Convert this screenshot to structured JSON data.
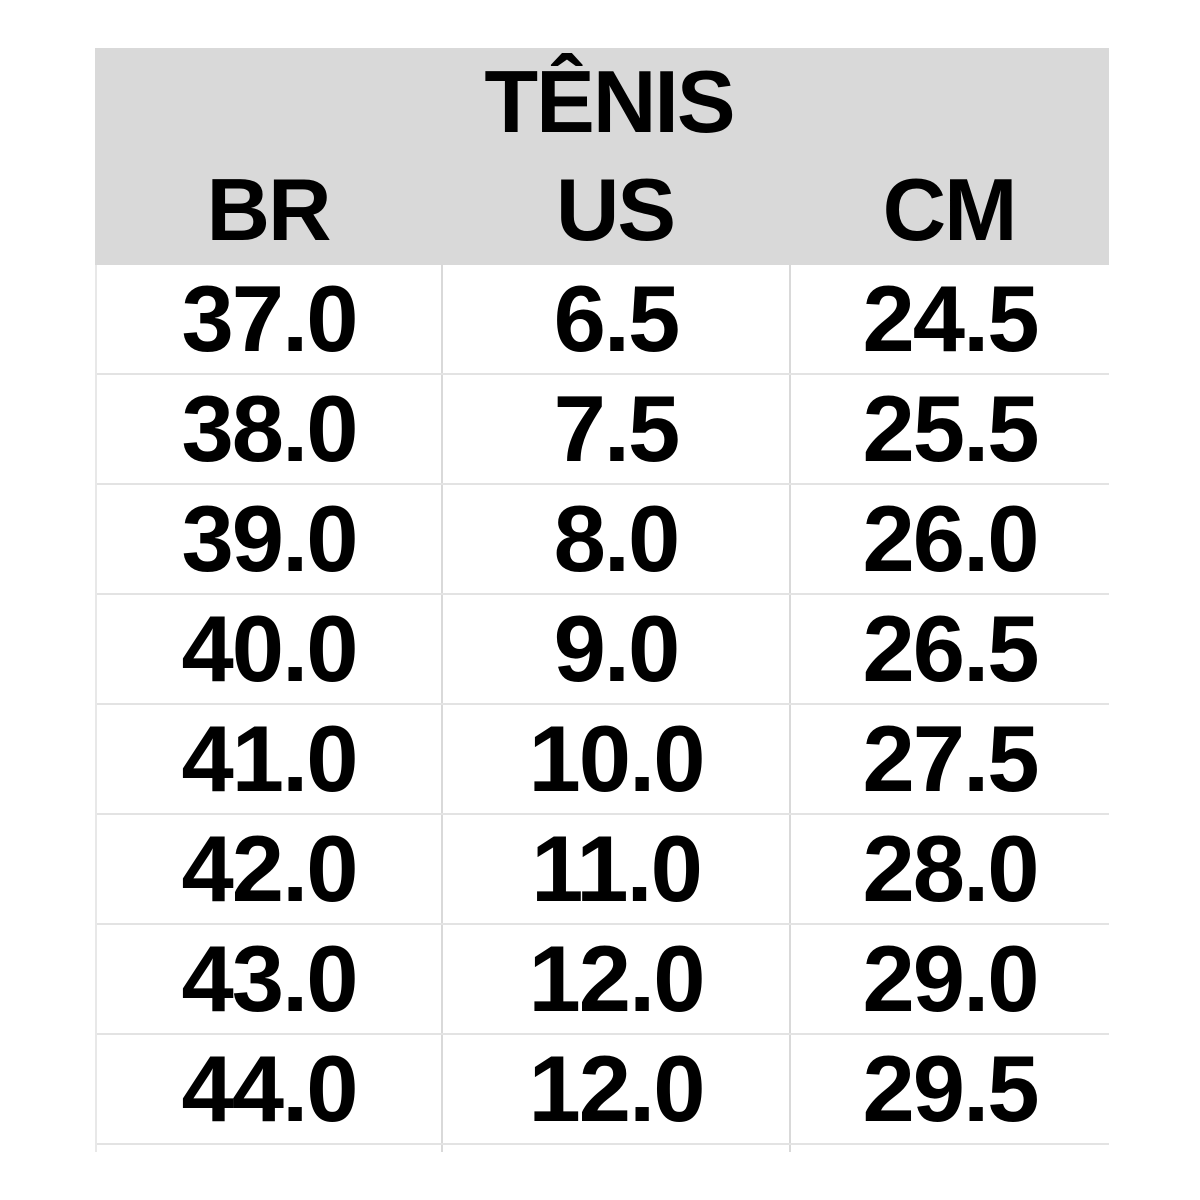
{
  "table": {
    "title": "TÊNIS",
    "columns": [
      "BR",
      "US",
      "CM"
    ],
    "rows": [
      [
        "37.0",
        "6.5",
        "24.5"
      ],
      [
        "38.0",
        "7.5",
        "25.5"
      ],
      [
        "39.0",
        "8.0",
        "26.0"
      ],
      [
        "40.0",
        "9.0",
        "26.5"
      ],
      [
        "41.0",
        "10.0",
        "27.5"
      ],
      [
        "42.0",
        "11.0",
        "28.0"
      ],
      [
        "43.0",
        "12.0",
        "29.0"
      ],
      [
        "44.0",
        "12.0",
        "29.5"
      ]
    ]
  },
  "colors": {
    "header_bg": "#d9d9d9",
    "row_bg": "#ffffff",
    "grid_horizontal": "#e3e3e3",
    "grid_vertical": "#d9d9d9",
    "text": "#000000",
    "page_bg": "#ffffff"
  }
}
